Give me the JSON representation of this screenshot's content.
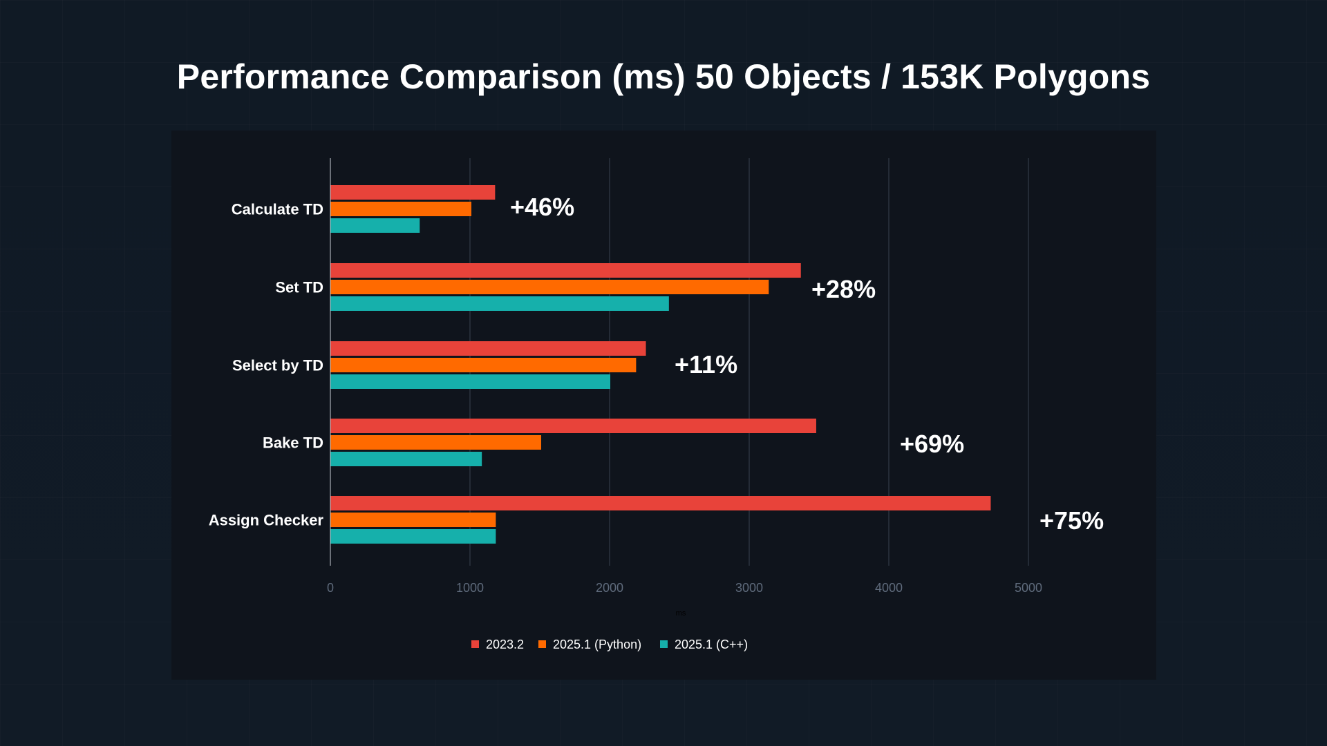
{
  "title": "Performance Comparison (ms) 50 Objects / 153K Polygons",
  "chart_data": {
    "type": "bar",
    "orientation": "horizontal",
    "categories": [
      "Calculate TD",
      "Set TD",
      "Select by TD",
      "Bake TD",
      "Assign Checker"
    ],
    "series": [
      {
        "name": "2023.2",
        "color": "#e8433a",
        "values": [
          1180,
          3370,
          2260,
          3480,
          4730
        ]
      },
      {
        "name": "2025.1 (Python)",
        "color": "#ff6a00",
        "values": [
          1010,
          3140,
          2190,
          1510,
          1185
        ]
      },
      {
        "name": "2025.1 (C++)",
        "color": "#16b0ab",
        "values": [
          640,
          2425,
          2005,
          1085,
          1185
        ]
      }
    ],
    "annotations": [
      "+46%",
      "+28%",
      "+11%",
      "+69%",
      "+75%"
    ],
    "xlabel": "ms",
    "ylabel": "",
    "xlim": [
      0,
      5000
    ],
    "xticks": [
      0,
      1000,
      2000,
      3000,
      4000,
      5000
    ],
    "grid": true,
    "legend_position": "bottom"
  }
}
